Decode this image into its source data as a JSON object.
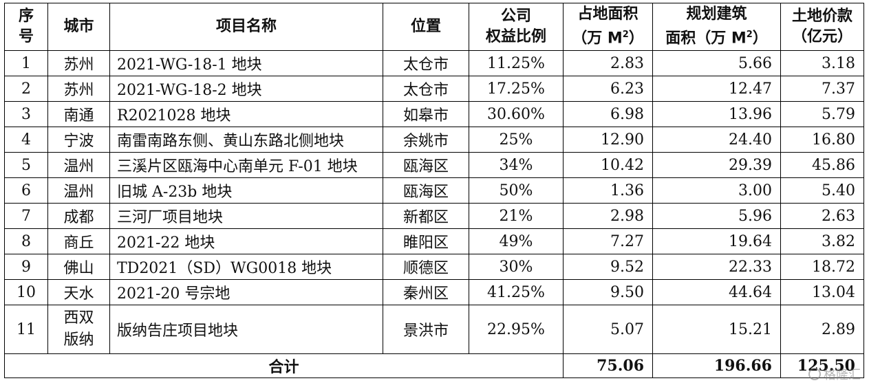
{
  "table": {
    "headers": {
      "seq": [
        "序",
        "号"
      ],
      "city": "城市",
      "name": "项目名称",
      "location": "位置",
      "equity": [
        "公司",
        "权益比例"
      ],
      "land_area": [
        "占地面积",
        "（万 M",
        "2",
        "）"
      ],
      "gfa": [
        "规划建筑",
        "面积（万 M",
        "2",
        "）"
      ],
      "price": [
        "土地价款",
        "（亿元）"
      ]
    },
    "rows": [
      {
        "seq": "1",
        "city": "苏州",
        "name": "2021-WG-18-1 地块",
        "location": "太仓市",
        "equity": "11.25%",
        "land_area": "2.83",
        "gfa": "5.66",
        "price": "3.18"
      },
      {
        "seq": "2",
        "city": "苏州",
        "name": "2021-WG-18-2 地块",
        "location": "太仓市",
        "equity": "17.25%",
        "land_area": "6.23",
        "gfa": "12.47",
        "price": "7.37"
      },
      {
        "seq": "3",
        "city": "南通",
        "name": "R2021028 地块",
        "location": "如皋市",
        "equity": "30.60%",
        "land_area": "6.98",
        "gfa": "13.96",
        "price": "5.79"
      },
      {
        "seq": "4",
        "city": "宁波",
        "name": "南雷南路东侧、黄山东路北侧地块",
        "location": "余姚市",
        "equity": "25%",
        "land_area": "12.90",
        "gfa": "24.40",
        "price": "16.80"
      },
      {
        "seq": "5",
        "city": "温州",
        "name": "三溪片区瓯海中心南单元 F-01 地块",
        "location": "瓯海区",
        "equity": "34%",
        "land_area": "10.42",
        "gfa": "29.39",
        "price": "45.86"
      },
      {
        "seq": "6",
        "city": "温州",
        "name": "旧城 A-23b 地块",
        "location": "瓯海区",
        "equity": "50%",
        "land_area": "1.36",
        "gfa": "3.00",
        "price": "5.40"
      },
      {
        "seq": "7",
        "city": "成都",
        "name": "三河厂项目地块",
        "location": "新都区",
        "equity": "21%",
        "land_area": "2.98",
        "gfa": "5.96",
        "price": "2.63"
      },
      {
        "seq": "8",
        "city": "商丘",
        "name": "2021-22 地块",
        "location": "睢阳区",
        "equity": "49%",
        "land_area": "7.27",
        "gfa": "19.64",
        "price": "3.82"
      },
      {
        "seq": "9",
        "city": "佛山",
        "name": "TD2021（SD）WG0018 地块",
        "location": "顺德区",
        "equity": "30%",
        "land_area": "9.52",
        "gfa": "22.33",
        "price": "18.72"
      },
      {
        "seq": "10",
        "city": "天水",
        "name": "2021-20 号宗地",
        "location": "秦州区",
        "equity": "41.25%",
        "land_area": "9.50",
        "gfa": "44.64",
        "price": "13.04"
      },
      {
        "seq": "11",
        "city": [
          "西双",
          "版纳"
        ],
        "name": "版纳告庄项目地块",
        "location": "景洪市",
        "equity": "22.95%",
        "land_area": "5.07",
        "gfa": "15.21",
        "price": "2.89"
      }
    ],
    "total": {
      "label": "合计",
      "land_area": "75.06",
      "gfa": "196.66",
      "price": "125.50"
    }
  },
  "watermark": {
    "text": "格隆汇",
    "color": "#888888"
  }
}
